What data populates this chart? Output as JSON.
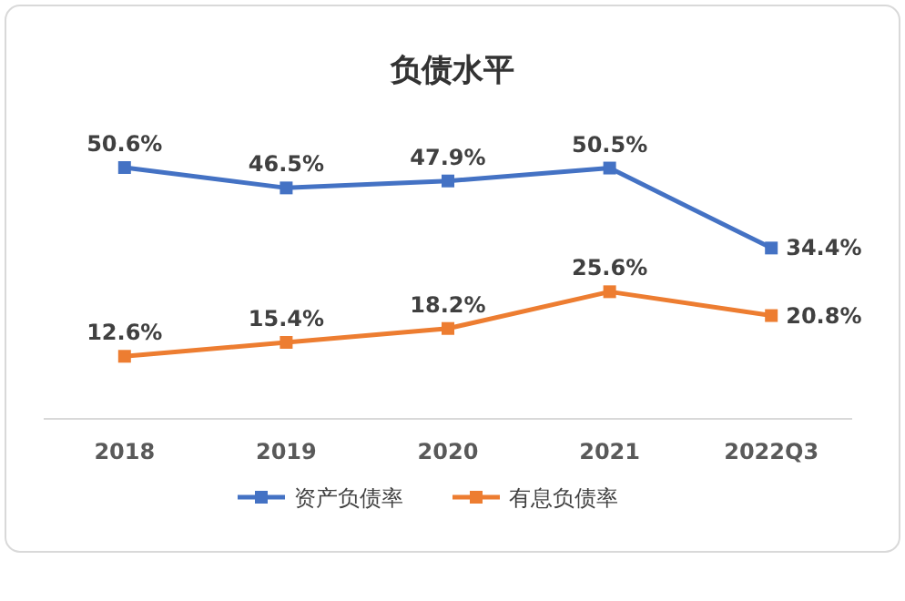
{
  "chart_data": {
    "type": "line",
    "title": "负债水平",
    "categories": [
      "2018",
      "2019",
      "2020",
      "2021",
      "2022Q3"
    ],
    "series": [
      {
        "name": "资产负债率",
        "color": "#4472c4",
        "values": [
          50.6,
          46.5,
          47.9,
          50.5,
          34.4
        ],
        "value_labels": [
          "50.6%",
          "46.5%",
          "47.9%",
          "50.5%",
          "34.4%"
        ]
      },
      {
        "name": "有息负债率",
        "color": "#ed7d31",
        "values": [
          12.6,
          15.4,
          18.2,
          25.6,
          20.8
        ],
        "value_labels": [
          "12.6%",
          "15.4%",
          "18.2%",
          "25.6%",
          "20.8%"
        ]
      }
    ],
    "legend": "bottom",
    "marker": "square",
    "line_style": "solid"
  }
}
